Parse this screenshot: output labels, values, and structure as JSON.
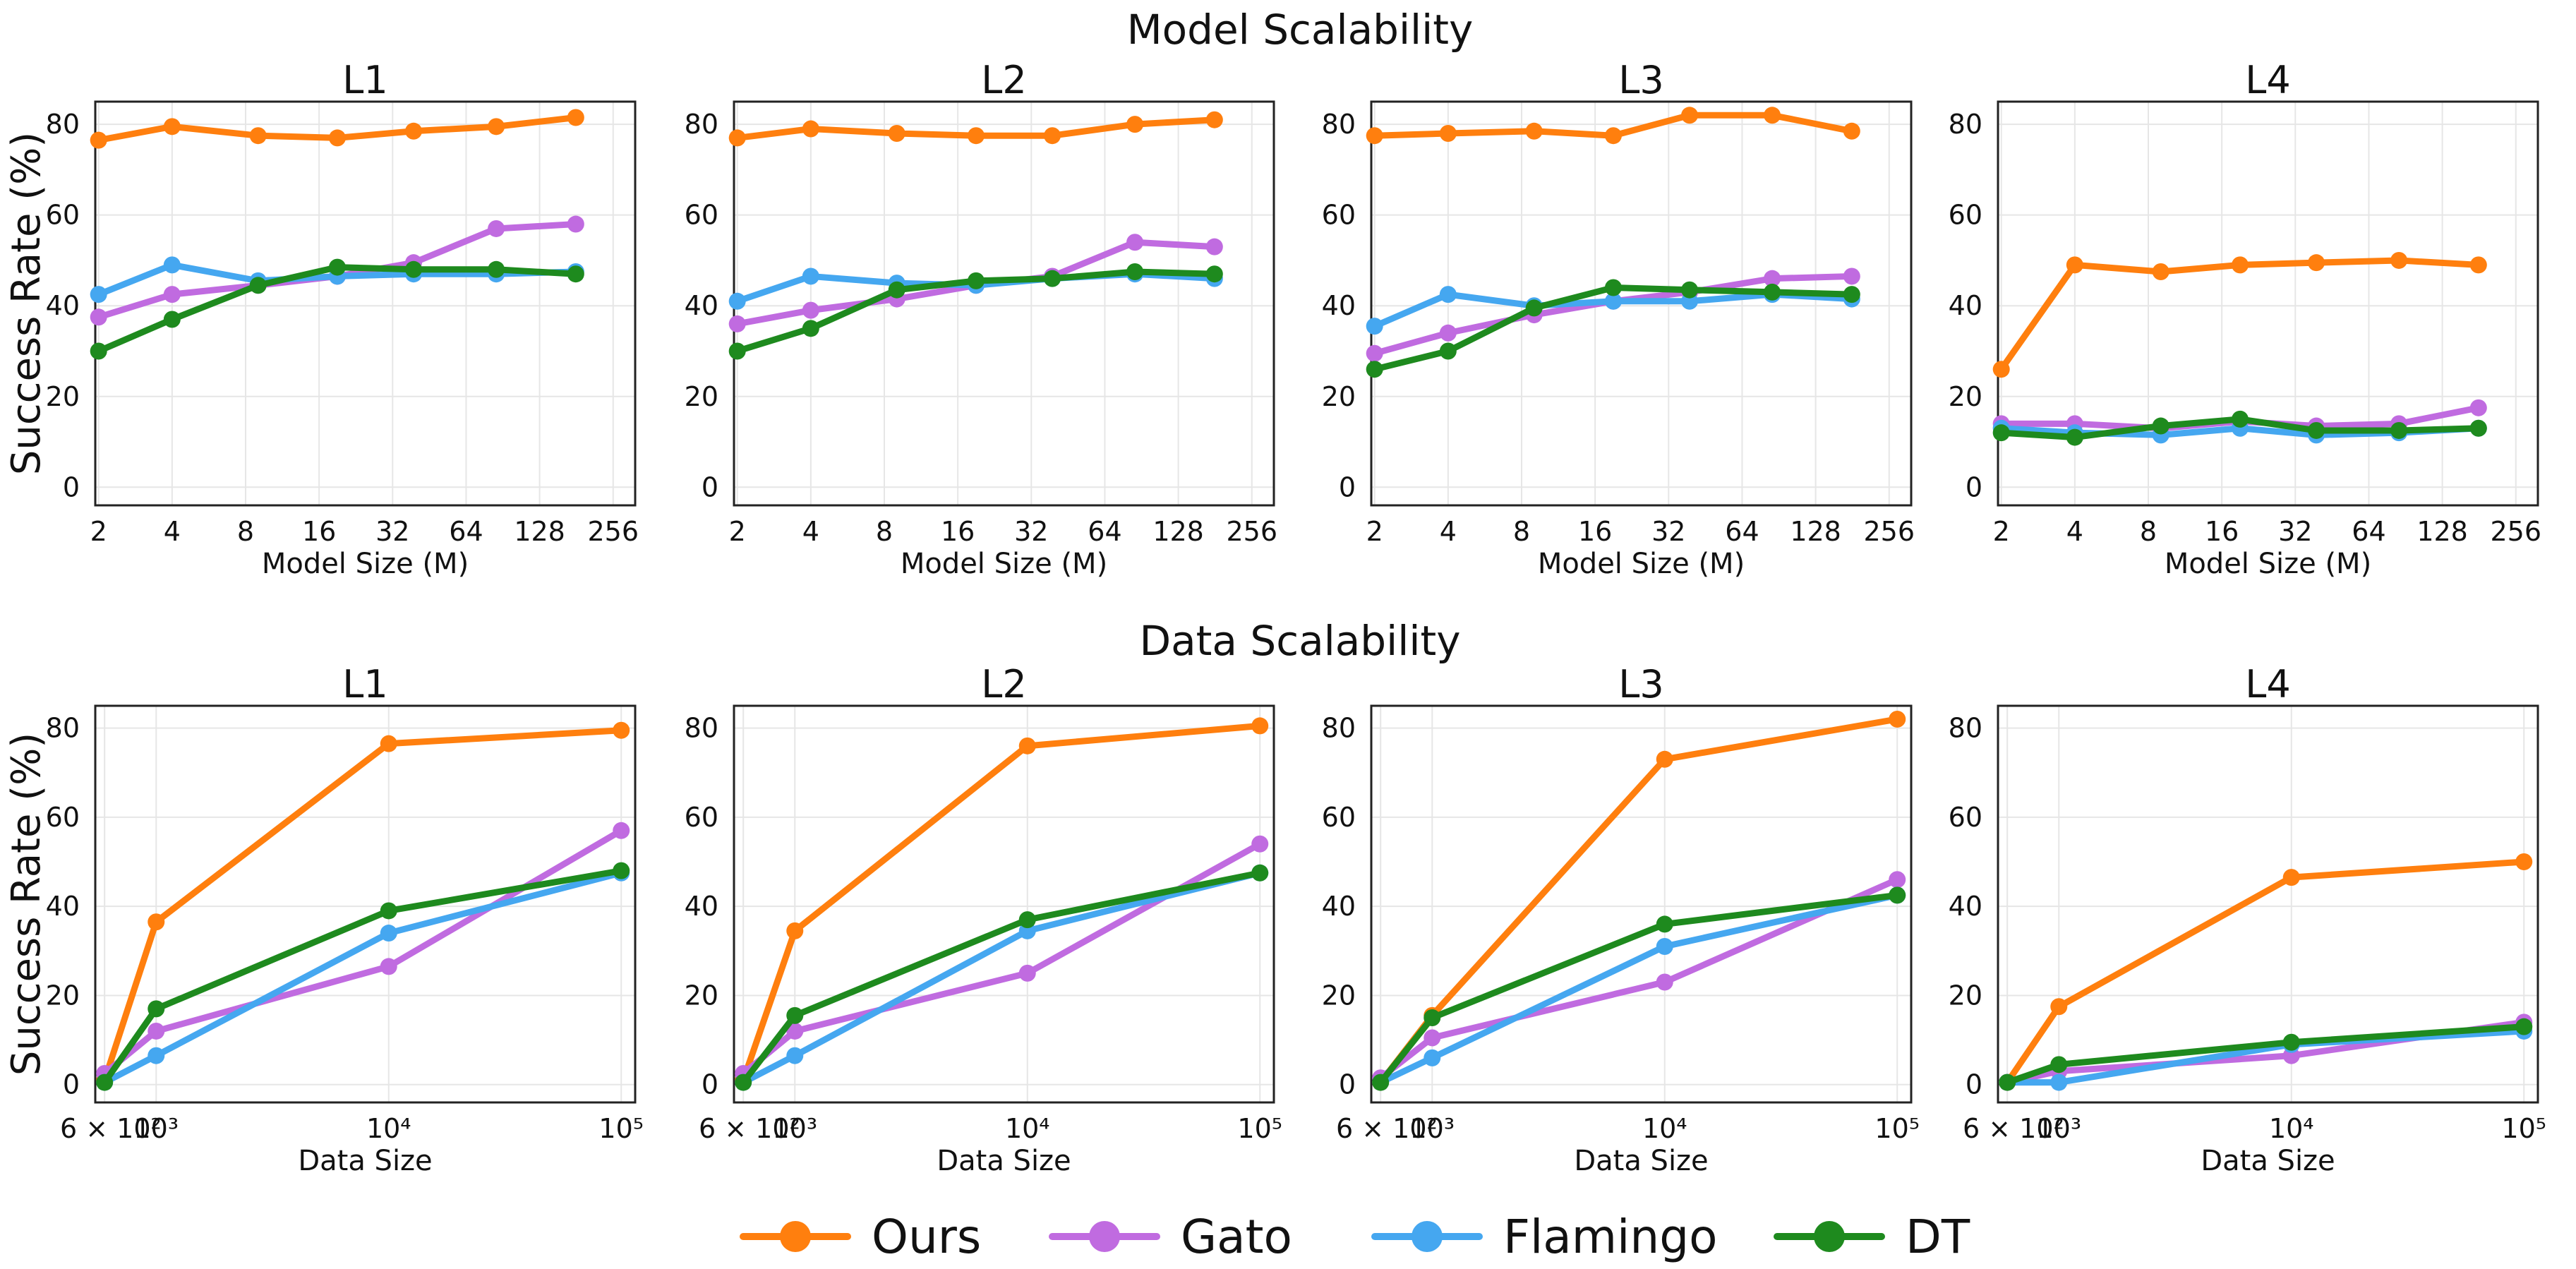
{
  "figure": {
    "row_titles": [
      "Model Scalability",
      "Data Scalability"
    ],
    "legend": [
      {
        "name": "Ours",
        "color": "#FF7F0E"
      },
      {
        "name": "Gato",
        "color": "#C06BE0"
      },
      {
        "name": "Flamingo",
        "color": "#45A7F0"
      },
      {
        "name": "DT",
        "color": "#1E8A1E"
      }
    ]
  },
  "chart_data": [
    {
      "type": "line",
      "title": "L1",
      "xlabel": "Model Size (M)",
      "ylabel": "Success Rate (%)",
      "xscale": "log2",
      "xticks": [
        2,
        4,
        8,
        16,
        32,
        64,
        128,
        256
      ],
      "xticklabels": [
        "2",
        "4",
        "8",
        "16",
        "32",
        "64",
        "128",
        "256"
      ],
      "yticks": [
        0,
        20,
        40,
        60,
        80
      ],
      "ylim": [
        -4,
        85
      ],
      "grid": true,
      "x": [
        2,
        4,
        9,
        19,
        39,
        85,
        180
      ],
      "series": [
        {
          "name": "Ours",
          "values": [
            76.5,
            79.5,
            77.5,
            77,
            78.5,
            79.5,
            81.5
          ]
        },
        {
          "name": "Gato",
          "values": [
            37.5,
            42.5,
            44.5,
            46.5,
            49.5,
            57,
            58
          ]
        },
        {
          "name": "Flamingo",
          "values": [
            42.5,
            49,
            45.5,
            46.5,
            47,
            47,
            47.5
          ]
        },
        {
          "name": "DT",
          "values": [
            30,
            37,
            44.5,
            48.5,
            48,
            48,
            47
          ]
        }
      ]
    },
    {
      "type": "line",
      "title": "L2",
      "xlabel": "Model Size (M)",
      "ylabel": "",
      "xscale": "log2",
      "xticks": [
        2,
        4,
        8,
        16,
        32,
        64,
        128,
        256
      ],
      "xticklabels": [
        "2",
        "4",
        "8",
        "16",
        "32",
        "64",
        "128",
        "256"
      ],
      "yticks": [
        0,
        20,
        40,
        60,
        80
      ],
      "ylim": [
        -4,
        85
      ],
      "grid": true,
      "x": [
        2,
        4,
        9,
        19,
        39,
        85,
        180
      ],
      "series": [
        {
          "name": "Ours",
          "values": [
            77,
            79,
            78,
            77.5,
            77.5,
            80,
            81
          ]
        },
        {
          "name": "Gato",
          "values": [
            36,
            39,
            41.5,
            44.5,
            46.5,
            54,
            53
          ]
        },
        {
          "name": "Flamingo",
          "values": [
            41,
            46.5,
            45,
            44.5,
            46,
            47,
            46
          ]
        },
        {
          "name": "DT",
          "values": [
            30,
            35,
            43.5,
            45.5,
            46,
            47.5,
            47
          ]
        }
      ]
    },
    {
      "type": "line",
      "title": "L3",
      "xlabel": "Model Size (M)",
      "ylabel": "",
      "xscale": "log2",
      "xticks": [
        2,
        4,
        8,
        16,
        32,
        64,
        128,
        256
      ],
      "xticklabels": [
        "2",
        "4",
        "8",
        "16",
        "32",
        "64",
        "128",
        "256"
      ],
      "yticks": [
        0,
        20,
        40,
        60,
        80
      ],
      "ylim": [
        -4,
        85
      ],
      "grid": true,
      "x": [
        2,
        4,
        9,
        19,
        39,
        85,
        180
      ],
      "series": [
        {
          "name": "Ours",
          "values": [
            77.5,
            78,
            78.5,
            77.5,
            82,
            82,
            78.5
          ]
        },
        {
          "name": "Gato",
          "values": [
            29.5,
            34,
            38,
            41,
            43,
            46,
            46.5
          ]
        },
        {
          "name": "Flamingo",
          "values": [
            35.5,
            42.5,
            40,
            41,
            41,
            42.5,
            41.5
          ]
        },
        {
          "name": "DT",
          "values": [
            26,
            30,
            39.5,
            44,
            43.5,
            43,
            42.5
          ]
        }
      ]
    },
    {
      "type": "line",
      "title": "L4",
      "xlabel": "Model Size (M)",
      "ylabel": "",
      "xscale": "log2",
      "xticks": [
        2,
        4,
        8,
        16,
        32,
        64,
        128,
        256
      ],
      "xticklabels": [
        "2",
        "4",
        "8",
        "16",
        "32",
        "64",
        "128",
        "256"
      ],
      "yticks": [
        0,
        20,
        40,
        60,
        80
      ],
      "ylim": [
        -4,
        85
      ],
      "grid": true,
      "x": [
        2,
        4,
        9,
        19,
        39,
        85,
        180
      ],
      "series": [
        {
          "name": "Ours",
          "values": [
            26,
            49,
            47.5,
            49,
            49.5,
            50,
            49
          ]
        },
        {
          "name": "Gato",
          "values": [
            14,
            14,
            13,
            14.5,
            13.5,
            14,
            17.5
          ]
        },
        {
          "name": "Flamingo",
          "values": [
            13,
            12,
            11.5,
            13,
            11.5,
            12,
            13
          ]
        },
        {
          "name": "DT",
          "values": [
            12,
            11,
            13.5,
            15,
            12.5,
            12.5,
            13
          ]
        }
      ]
    },
    {
      "type": "line",
      "title": "L1",
      "xlabel": "Data Size",
      "ylabel": "Success Rate (%)",
      "xscale": "log10",
      "xticks": [
        600,
        1000,
        10000,
        100000
      ],
      "xticklabels": [
        "6 × 10²",
        "10³",
        "10⁴",
        "10⁵"
      ],
      "yticks": [
        0,
        20,
        40,
        60,
        80
      ],
      "ylim": [
        -4,
        85
      ],
      "grid": true,
      "x": [
        600,
        1000,
        10000,
        100000
      ],
      "series": [
        {
          "name": "Ours",
          "values": [
            1,
            36.5,
            76.5,
            79.5
          ]
        },
        {
          "name": "Gato",
          "values": [
            2.5,
            12,
            26.5,
            57
          ]
        },
        {
          "name": "Flamingo",
          "values": [
            0.5,
            6.5,
            34,
            47.5
          ]
        },
        {
          "name": "DT",
          "values": [
            0.5,
            17,
            39,
            48
          ]
        }
      ]
    },
    {
      "type": "line",
      "title": "L2",
      "xlabel": "Data Size",
      "ylabel": "",
      "xscale": "log10",
      "xticks": [
        600,
        1000,
        10000,
        100000
      ],
      "xticklabels": [
        "6 × 10²",
        "10³",
        "10⁴",
        "10⁵"
      ],
      "yticks": [
        0,
        20,
        40,
        60,
        80
      ],
      "ylim": [
        -4,
        85
      ],
      "grid": true,
      "x": [
        600,
        1000,
        10000,
        100000
      ],
      "series": [
        {
          "name": "Ours",
          "values": [
            1,
            34.5,
            76,
            80.5
          ]
        },
        {
          "name": "Gato",
          "values": [
            2.5,
            12,
            25,
            54
          ]
        },
        {
          "name": "Flamingo",
          "values": [
            0.5,
            6.5,
            34.5,
            47.5
          ]
        },
        {
          "name": "DT",
          "values": [
            0.5,
            15.5,
            37,
            47.5
          ]
        }
      ]
    },
    {
      "type": "line",
      "title": "L3",
      "xlabel": "Data Size",
      "ylabel": "",
      "xscale": "log10",
      "xticks": [
        600,
        1000,
        10000,
        100000
      ],
      "xticklabels": [
        "6 × 10²",
        "10³",
        "10⁴",
        "10⁵"
      ],
      "yticks": [
        0,
        20,
        40,
        60,
        80
      ],
      "ylim": [
        -4,
        85
      ],
      "grid": true,
      "x": [
        600,
        1000,
        10000,
        100000
      ],
      "series": [
        {
          "name": "Ours",
          "values": [
            0.5,
            15.5,
            73,
            82
          ]
        },
        {
          "name": "Gato",
          "values": [
            1.5,
            10.5,
            23,
            46
          ]
        },
        {
          "name": "Flamingo",
          "values": [
            0.5,
            6,
            31,
            42.5
          ]
        },
        {
          "name": "DT",
          "values": [
            0.5,
            15,
            36,
            42.5
          ]
        }
      ]
    },
    {
      "type": "line",
      "title": "L4",
      "xlabel": "Data Size",
      "ylabel": "",
      "xscale": "log10",
      "xticks": [
        600,
        1000,
        10000,
        100000
      ],
      "xticklabels": [
        "6 × 10²",
        "10³",
        "10⁴",
        "10⁵"
      ],
      "yticks": [
        0,
        20,
        40,
        60,
        80
      ],
      "ylim": [
        -4,
        85
      ],
      "grid": true,
      "x": [
        600,
        1000,
        10000,
        100000
      ],
      "series": [
        {
          "name": "Ours",
          "values": [
            0.5,
            17.5,
            46.5,
            50
          ]
        },
        {
          "name": "Gato",
          "values": [
            0.5,
            3,
            6.5,
            14
          ]
        },
        {
          "name": "Flamingo",
          "values": [
            0.5,
            0.5,
            9,
            12
          ]
        },
        {
          "name": "DT",
          "values": [
            0.5,
            4.5,
            9.5,
            13
          ]
        }
      ]
    }
  ]
}
